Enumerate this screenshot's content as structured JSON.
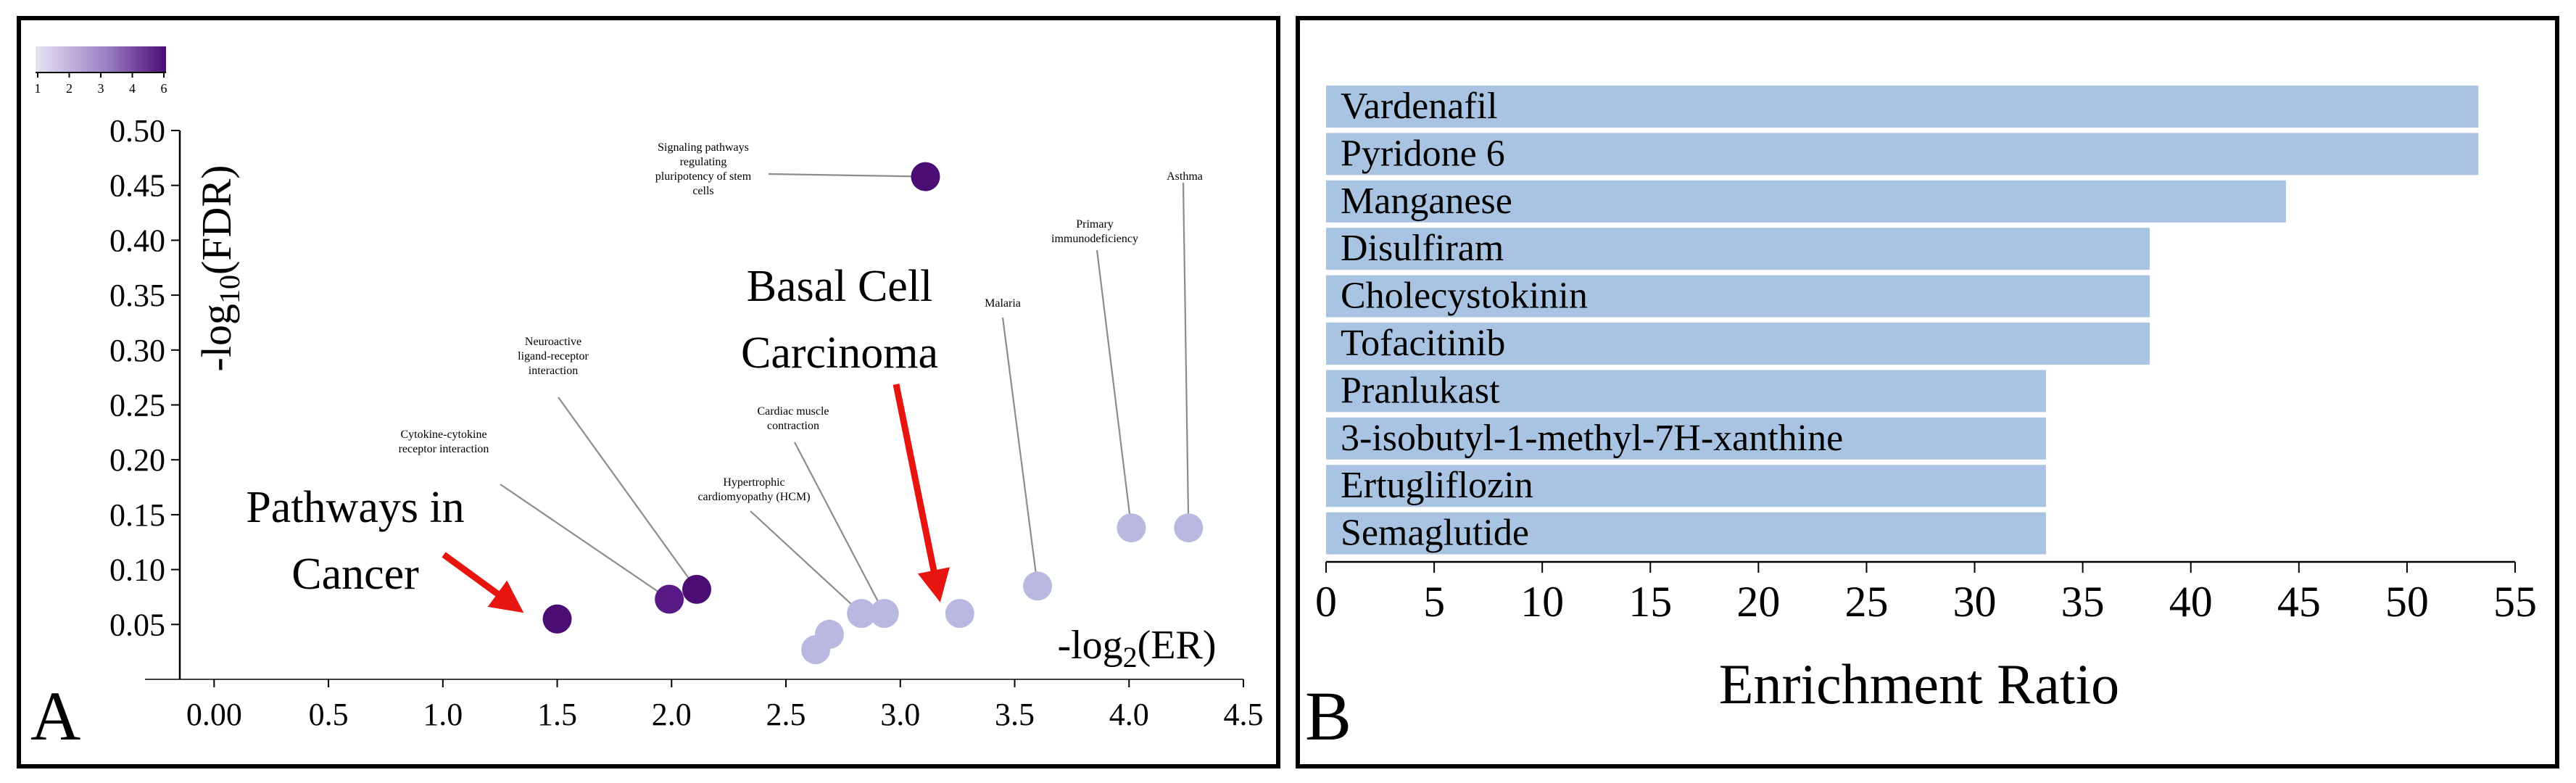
{
  "chart_data": [
    {
      "panel_label": "A",
      "type": "scatter",
      "xlabel": "-log2(ER)",
      "ylabel": "-log10(FDR)",
      "xlim": [
        -0.15,
        4.5
      ],
      "ylim": [
        0.0,
        0.5
      ],
      "x_ticks": [
        0.0,
        0.5,
        1.0,
        1.5,
        2.0,
        2.5,
        3.0,
        3.5,
        4.0,
        4.5
      ],
      "x_tick_labels": [
        "0.00",
        "0.5",
        "1.0",
        "1.5",
        "2.0",
        "2.5",
        "3.0",
        "3.5",
        "4.0",
        "4.5"
      ],
      "y_ticks": [
        0.05,
        0.1,
        0.15,
        0.2,
        0.25,
        0.3,
        0.35,
        0.4,
        0.45,
        0.5
      ],
      "y_tick_labels": [
        "0.05",
        "0.10",
        "0.15",
        "0.20",
        "0.25",
        "0.30",
        "0.35",
        "0.40",
        "0.45",
        "0.50"
      ],
      "colorbar": {
        "ticks": [
          "1",
          "2",
          "3",
          "4",
          "6"
        ],
        "low_color": "#e6e4f3",
        "high_color": "#4b0c74"
      },
      "points": [
        {
          "x": 1.5,
          "y": 0.055,
          "color": "#4b0c74"
        },
        {
          "x": 1.99,
          "y": 0.073,
          "color": "#5a1a85"
        },
        {
          "x": 2.11,
          "y": 0.082,
          "color": "#4b0c74"
        },
        {
          "x": 2.63,
          "y": 0.027,
          "color": "#b8b8e0"
        },
        {
          "x": 2.69,
          "y": 0.041,
          "color": "#b8b8e0"
        },
        {
          "x": 2.83,
          "y": 0.06,
          "color": "#b8b8e0"
        },
        {
          "x": 2.93,
          "y": 0.06,
          "color": "#b8b8e0"
        },
        {
          "x": 3.11,
          "y": 0.458,
          "color": "#4b0c74"
        },
        {
          "x": 3.26,
          "y": 0.06,
          "color": "#b8b8e0"
        },
        {
          "x": 3.6,
          "y": 0.085,
          "color": "#b8b8e0"
        },
        {
          "x": 4.01,
          "y": 0.138,
          "color": "#b8b8e0"
        },
        {
          "x": 4.26,
          "y": 0.138,
          "color": "#b8b8e0"
        }
      ],
      "annotations": [
        {
          "lines": [
            "Signaling pathways",
            "regulating",
            "pluripotency of stem",
            "cells"
          ],
          "point": 7
        },
        {
          "lines": [
            "Neuroactive",
            "ligand-receptor",
            "interaction"
          ],
          "point": 2
        },
        {
          "lines": [
            "Cytokine-cytokine",
            "receptor interaction"
          ],
          "point": 1
        },
        {
          "lines": [
            "Hypertrophic",
            "cardiomyopathy (HCM)"
          ],
          "point": 5
        },
        {
          "lines": [
            "Cardiac muscle",
            "contraction"
          ],
          "point": 6
        },
        {
          "lines": [
            "Malaria"
          ],
          "point": 9
        },
        {
          "lines": [
            "Primary",
            "immunodeficiency"
          ],
          "point": 10
        },
        {
          "lines": [
            "Asthma"
          ],
          "point": 11
        }
      ],
      "callouts": [
        {
          "lines": [
            "Pathways in",
            "Cancer"
          ],
          "point": 0,
          "arrow_color": "#e8140f"
        },
        {
          "lines": [
            "Basal Cell",
            "Carcinoma"
          ],
          "point": 8,
          "arrow_color": "#e8140f"
        }
      ]
    },
    {
      "panel_label": "B",
      "type": "bar",
      "orientation": "horizontal",
      "xlabel": "Enrichment Ratio",
      "xlim": [
        0,
        55
      ],
      "x_ticks": [
        0,
        5,
        10,
        15,
        20,
        25,
        30,
        35,
        40,
        45,
        50,
        55
      ],
      "bar_color": "#a9c4e2",
      "categories": [
        "Vardenafil",
        "Pyridone 6",
        "Manganese",
        "Disulfiram",
        "Cholecystokinin",
        "Tofacitinib",
        "Pranlukast",
        "3-isobutyl-1-methyl-7H-xanthine",
        "Ertugliflozin",
        "Semaglutide"
      ],
      "values": [
        53.3,
        53.3,
        44.4,
        38.1,
        38.1,
        38.1,
        33.3,
        33.3,
        33.3,
        33.3
      ]
    }
  ]
}
